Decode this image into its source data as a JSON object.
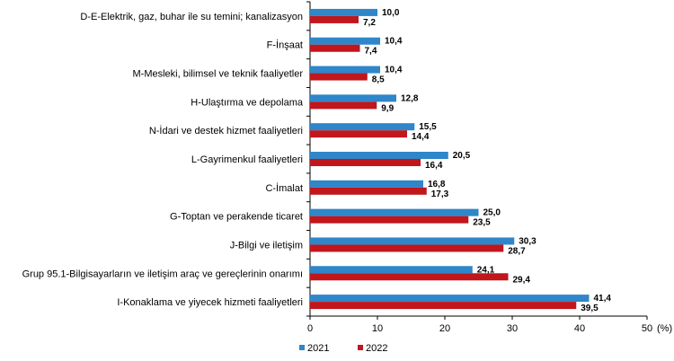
{
  "chart_data": {
    "type": "bar",
    "orientation": "horizontal",
    "categories": [
      "D-E-Elektrik, gaz, buhar ile su temini; kanalizasyon",
      "F-İnşaat",
      "M-Mesleki, bilimsel ve teknik faaliyetler",
      "H-Ulaştırma ve depolama",
      "N-İdari ve destek hizmet faaliyetleri",
      "L-Gayrimenkul faaliyetleri",
      "C-İmalat",
      "G-Toptan ve perakende ticaret",
      "J-Bilgi ve iletişim",
      "Grup 95.1-Bilgisayarların ve iletişim araç ve gereçlerinin onarımı",
      "I-Konaklama ve yiyecek hizmeti faaliyetleri"
    ],
    "series": [
      {
        "name": "2021",
        "color": "#2f86c9",
        "values": [
          10.0,
          10.4,
          10.4,
          12.8,
          15.5,
          20.5,
          16.8,
          25.0,
          30.3,
          24.1,
          41.4
        ],
        "labels": [
          "10,0",
          "10,4",
          "10,4",
          "12,8",
          "15,5",
          "20,5",
          "16,8",
          "25,0",
          "30,3",
          "24,1",
          "41,4"
        ]
      },
      {
        "name": "2022",
        "color": "#c0161c",
        "values": [
          7.2,
          7.4,
          8.5,
          9.9,
          14.4,
          16.4,
          17.3,
          23.5,
          28.7,
          29.4,
          39.5
        ],
        "labels": [
          "7,2",
          "7,4",
          "8,5",
          "9,9",
          "14,4",
          "16,4",
          "17,3",
          "23,5",
          "28,7",
          "29,4",
          "39,5"
        ]
      }
    ],
    "xlim": [
      0,
      50
    ],
    "xticks": [
      "0",
      "10",
      "20",
      "30",
      "40",
      "50"
    ],
    "unit_label": "(%)",
    "grid": false,
    "legend": "bottom"
  }
}
